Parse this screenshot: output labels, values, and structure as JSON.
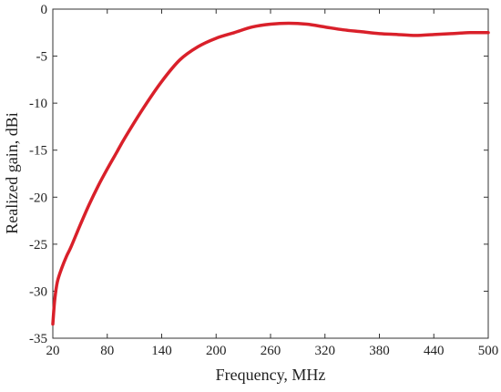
{
  "chart_data": {
    "type": "line",
    "title": "",
    "xlabel": "Frequency, MHz",
    "ylabel": "Realized gain, dBi",
    "xlim": [
      20,
      500
    ],
    "ylim": [
      -35,
      0
    ],
    "xticks": [
      20,
      80,
      140,
      200,
      260,
      320,
      380,
      440,
      500
    ],
    "yticks": [
      0,
      -5,
      -10,
      -15,
      -20,
      -25,
      -30,
      -35
    ],
    "x_tick_labels": [
      "20",
      "80",
      "140",
      "200",
      "260",
      "320",
      "380",
      "440",
      "500"
    ],
    "y_tick_labels": [
      "0",
      "-5",
      "-10",
      "-15",
      "-20",
      "-25",
      "-30",
      "-35"
    ],
    "grid": false,
    "legend": "none",
    "line_color": "#d9202a",
    "series": [
      {
        "x": [
          20,
          22,
          25,
          30,
          35,
          40,
          50,
          60,
          70,
          80,
          90,
          100,
          120,
          140,
          160,
          180,
          200,
          220,
          240,
          260,
          280,
          300,
          320,
          340,
          360,
          380,
          400,
          420,
          440,
          460,
          480,
          500
        ],
        "y": [
          -33.5,
          -31,
          -29,
          -27.5,
          -26.3,
          -25.3,
          -23,
          -20.8,
          -18.8,
          -17,
          -15.3,
          -13.6,
          -10.5,
          -7.7,
          -5.4,
          -4,
          -3.1,
          -2.5,
          -1.9,
          -1.6,
          -1.5,
          -1.6,
          -1.9,
          -2.2,
          -2.4,
          -2.6,
          -2.7,
          -2.8,
          -2.7,
          -2.6,
          -2.5,
          -2.5
        ]
      }
    ]
  }
}
